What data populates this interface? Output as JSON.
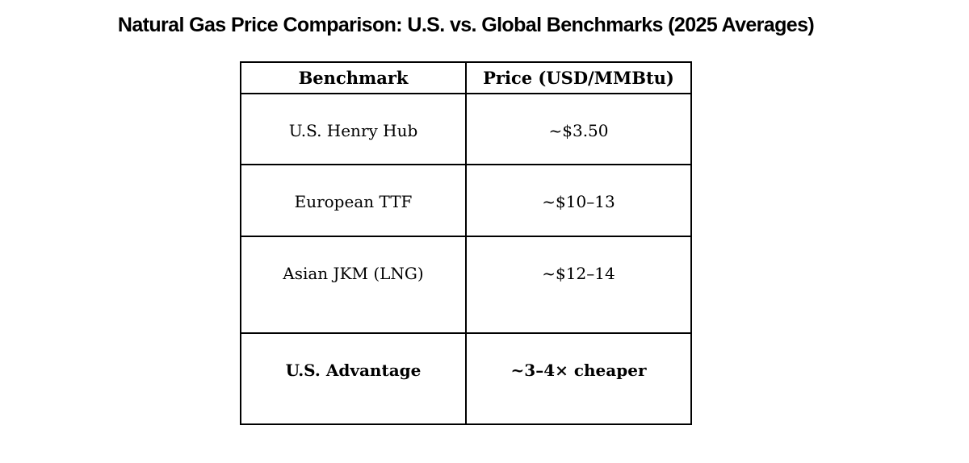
{
  "title": "Natural Gas Price Comparison: U.S. vs. Global Benchmarks (2025 Averages)",
  "table": {
    "headers": [
      "Benchmark",
      "Price (USD/MMBtu)"
    ],
    "rows": [
      {
        "benchmark": "U.S. Henry Hub",
        "price": "~$3.50",
        "emphasis": false
      },
      {
        "benchmark": "European TTF",
        "price": "~$10–13",
        "emphasis": false
      },
      {
        "benchmark": "Asian JKM (LNG)",
        "price": "~$12–14",
        "emphasis": false
      },
      {
        "benchmark": "U.S. Advantage",
        "price": "~3–4× cheaper",
        "emphasis": true
      }
    ]
  },
  "chart_data": {
    "type": "table",
    "title": "Natural Gas Price Comparison: U.S. vs. Global Benchmarks (2025 Averages)",
    "columns": [
      "Benchmark",
      "Price (USD/MMBtu)"
    ],
    "rows": [
      [
        "U.S. Henry Hub",
        "~$3.50"
      ],
      [
        "European TTF",
        "~$10–13"
      ],
      [
        "Asian JKM (LNG)",
        "~$12–14"
      ],
      [
        "U.S. Advantage",
        "~3–4× cheaper"
      ]
    ],
    "numeric_values": {
      "us_henry_hub_usd_per_mmbtu": 3.5,
      "european_ttf_usd_per_mmbtu_range": [
        10,
        13
      ],
      "asian_jkm_lng_usd_per_mmbtu_range": [
        12,
        14
      ],
      "us_advantage_cheaper_factor_range": [
        3,
        4
      ]
    },
    "layout_hints": {
      "grid": "full-borders",
      "header_row": true,
      "last_row_bold": true
    }
  },
  "colors": {
    "background": "#ffffff",
    "text": "#000000",
    "border": "#000000"
  }
}
